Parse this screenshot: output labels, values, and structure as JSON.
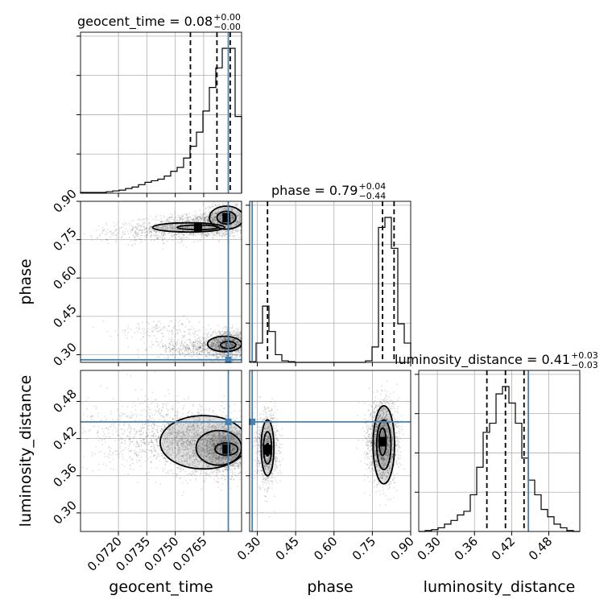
{
  "chart_data": {
    "type": "corner",
    "parameters": [
      "geocent_time",
      "phase",
      "luminosity_distance"
    ],
    "truth": {
      "geocent_time": 0.0778,
      "phase": 0.28,
      "luminosity_distance": 0.447
    },
    "truth_color": "#4682b4",
    "titles": [
      {
        "param": "geocent_time",
        "label": "geocent_time = 0.08",
        "plus": "+0.00",
        "minus": "−0.00"
      },
      {
        "param": "phase",
        "label": "phase = 0.79",
        "plus": "+0.04",
        "minus": "−0.44"
      },
      {
        "param": "luminosity_distance",
        "label": "luminosity_distance = 0.41",
        "plus": "+0.03",
        "minus": "−0.03"
      }
    ],
    "axis_labels": {
      "x": [
        "geocent_time",
        "phase",
        "luminosity_distance"
      ],
      "y": [
        "phase",
        "luminosity_distance"
      ]
    },
    "ticks": {
      "geocent_time": [
        "0.0720",
        "0.0735",
        "0.0750",
        "0.0765"
      ],
      "phase": [
        "0.30",
        "0.45",
        "0.60",
        "0.75",
        "0.90"
      ],
      "luminosity_distance": [
        "0.30",
        "0.36",
        "0.42",
        "0.48"
      ]
    },
    "ranges": {
      "geocent_time": [
        0.07,
        0.0785
      ],
      "phase": [
        0.27,
        0.9
      ],
      "luminosity_distance": [
        0.27,
        0.53
      ]
    },
    "quantile_lines": {
      "geocent_time": [
        0.0758,
        0.0772,
        0.0779
      ],
      "phase": [
        0.34,
        0.79,
        0.835
      ],
      "luminosity_distance": [
        0.38,
        0.41,
        0.44
      ]
    },
    "histograms": {
      "geocent_time": {
        "edges": [
          0.07,
          0.07034,
          0.07068,
          0.07102,
          0.07136,
          0.0717,
          0.07204,
          0.07238,
          0.07272,
          0.07306,
          0.0734,
          0.07374,
          0.07408,
          0.07442,
          0.07476,
          0.0751,
          0.07544,
          0.07578,
          0.07612,
          0.07646,
          0.0768,
          0.07714,
          0.07748,
          0.07782,
          0.07816,
          0.0785
        ],
        "counts": [
          1,
          1,
          1,
          1,
          2,
          3,
          4,
          6,
          8,
          11,
          14,
          16,
          18,
          22,
          28,
          33,
          45,
          60,
          78,
          105,
          135,
          160,
          185,
          185,
          98
        ]
      },
      "phase": {
        "edges": [
          0.27,
          0.2952,
          0.3204,
          0.3456,
          0.3708,
          0.396,
          0.4212,
          0.4464,
          0.4716,
          0.4968,
          0.522,
          0.5472,
          0.5724,
          0.5976,
          0.6228,
          0.648,
          0.6732,
          0.6984,
          0.7236,
          0.7488,
          0.774,
          0.7992,
          0.8244,
          0.8496,
          0.8748,
          0.9
        ],
        "counts": [
          1,
          25,
          73,
          40,
          10,
          2,
          1,
          0,
          0,
          0,
          0,
          0,
          0,
          0,
          0,
          0,
          0,
          0,
          2,
          20,
          175,
          188,
          148,
          50,
          25
        ]
      },
      "luminosity_distance": {
        "edges": [
          0.27,
          0.2804,
          0.2908,
          0.3012,
          0.3116,
          0.322,
          0.3324,
          0.3428,
          0.3532,
          0.3636,
          0.374,
          0.3844,
          0.3948,
          0.4052,
          0.4156,
          0.426,
          0.4364,
          0.4468,
          0.4572,
          0.4676,
          0.478,
          0.4884,
          0.4988,
          0.5092,
          0.5196,
          0.53
        ],
        "counts": [
          0,
          1,
          2,
          4,
          8,
          12,
          18,
          22,
          40,
          70,
          108,
          118,
          150,
          158,
          140,
          118,
          80,
          56,
          40,
          24,
          16,
          8,
          4,
          1,
          0
        ]
      }
    },
    "density_regions": [
      {
        "x": "geocent_time",
        "y": "phase",
        "clusters": [
          {
            "cx": 0.0762,
            "cy": 0.805,
            "sx": 0.0012,
            "sy": 0.022,
            "n": 1100
          },
          {
            "cx": 0.0777,
            "cy": 0.835,
            "sx": 0.0006,
            "sy": 0.03,
            "n": 900
          },
          {
            "cx": 0.0737,
            "cy": 0.78,
            "sx": 0.0015,
            "sy": 0.02,
            "n": 350
          },
          {
            "cx": 0.0778,
            "cy": 0.34,
            "sx": 0.0006,
            "sy": 0.025,
            "n": 1400
          },
          {
            "cx": 0.0762,
            "cy": 0.325,
            "sx": 0.0012,
            "sy": 0.018,
            "n": 500
          },
          {
            "cx": 0.0745,
            "cy": 0.4,
            "sx": 0.0013,
            "sy": 0.02,
            "n": 150
          }
        ],
        "contours": [
          {
            "cx": 0.0762,
            "cy": 0.798,
            "rx": 0.0011,
            "ry": 0.009
          },
          {
            "cx": 0.0757,
            "cy": 0.798,
            "rx": 0.0019,
            "ry": 0.018
          },
          {
            "cx": 0.0777,
            "cy": 0.836,
            "rx": 0.0005,
            "ry": 0.025
          },
          {
            "cx": 0.0777,
            "cy": 0.836,
            "rx": 0.0009,
            "ry": 0.045
          },
          {
            "cx": 0.0778,
            "cy": 0.338,
            "rx": 0.0004,
            "ry": 0.014
          },
          {
            "cx": 0.0776,
            "cy": 0.342,
            "rx": 0.0009,
            "ry": 0.03
          }
        ]
      },
      {
        "x": "geocent_time",
        "y": "luminosity_distance",
        "clusters": [
          {
            "cx": 0.0777,
            "cy": 0.405,
            "sx": 0.0006,
            "sy": 0.018,
            "n": 2200
          },
          {
            "cx": 0.0765,
            "cy": 0.41,
            "sx": 0.0012,
            "sy": 0.025,
            "n": 1400
          },
          {
            "cx": 0.0745,
            "cy": 0.425,
            "sx": 0.0016,
            "sy": 0.025,
            "n": 700
          },
          {
            "cx": 0.0725,
            "cy": 0.43,
            "sx": 0.0018,
            "sy": 0.03,
            "n": 250
          }
        ],
        "contours": [
          {
            "cx": 0.0777,
            "cy": 0.403,
            "rx": 0.0006,
            "ry": 0.01
          },
          {
            "cx": 0.0773,
            "cy": 0.405,
            "rx": 0.0012,
            "ry": 0.028
          },
          {
            "cx": 0.0765,
            "cy": 0.414,
            "rx": 0.0023,
            "ry": 0.043
          }
        ]
      },
      {
        "x": "phase",
        "y": "luminosity_distance",
        "clusters": [
          {
            "cx": 0.34,
            "cy": 0.405,
            "sx": 0.02,
            "sy": 0.028,
            "n": 1100
          },
          {
            "cx": 0.79,
            "cy": 0.415,
            "sx": 0.027,
            "sy": 0.03,
            "n": 2400
          }
        ],
        "contours": [
          {
            "cx": 0.34,
            "cy": 0.402,
            "rx": 0.006,
            "ry": 0.01
          },
          {
            "cx": 0.34,
            "cy": 0.405,
            "rx": 0.016,
            "ry": 0.026
          },
          {
            "cx": 0.34,
            "cy": 0.405,
            "rx": 0.025,
            "ry": 0.045
          },
          {
            "cx": 0.79,
            "cy": 0.415,
            "rx": 0.014,
            "ry": 0.022
          },
          {
            "cx": 0.795,
            "cy": 0.41,
            "rx": 0.028,
            "ry": 0.04
          },
          {
            "cx": 0.795,
            "cy": 0.41,
            "rx": 0.042,
            "ry": 0.063
          }
        ]
      }
    ],
    "grid": true
  }
}
